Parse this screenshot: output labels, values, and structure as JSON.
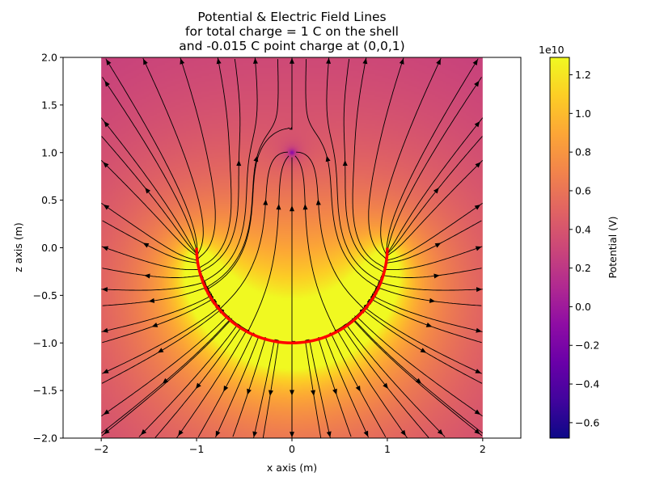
{
  "chart_data": {
    "type": "heatmap",
    "title": [
      "Potential & Electric Field Lines",
      "for total charge = 1 C on the shell",
      "and -0.015 C point charge at (0,0,1)"
    ],
    "xlabel": "x axis (m)",
    "ylabel": "z axis (m)",
    "xlim": [
      -2.4,
      2.4
    ],
    "ylim": [
      -2.0,
      2.0
    ],
    "field_xrange": [
      -2,
      2
    ],
    "field_zrange": [
      -2,
      2
    ],
    "x_ticks": [
      -2,
      -1,
      0,
      1,
      2
    ],
    "x_tick_labels": [
      "−2",
      "−1",
      "0",
      "1",
      "2"
    ],
    "y_ticks": [
      -2.0,
      -1.5,
      -1.0,
      -0.5,
      0.0,
      0.5,
      1.0,
      1.5,
      2.0
    ],
    "y_tick_labels": [
      "−2.0",
      "−1.5",
      "−1.0",
      "−0.5",
      "0.0",
      "0.5",
      "1.0",
      "1.5",
      "2.0"
    ],
    "shell": {
      "shape": "lower-hemisphere",
      "radius": 1,
      "center": [
        0,
        0
      ],
      "total_charge_C": 1,
      "color": "#ff0000"
    },
    "point_charge": {
      "x": 0,
      "z": 1,
      "charge_C": -0.015
    },
    "colorbar": {
      "label": "Potential (V)",
      "multiplier": "1e10",
      "colormap": "plasma",
      "vmin": -0.68,
      "vmax": 1.29,
      "ticks": [
        -0.6,
        -0.4,
        -0.2,
        0.0,
        0.2,
        0.4,
        0.6,
        0.8,
        1.0,
        1.2
      ],
      "tick_labels": [
        "−0.6",
        "−0.4",
        "−0.2",
        "0.0",
        "0.2",
        "0.4",
        "0.6",
        "0.8",
        "1.0",
        "1.2"
      ]
    },
    "field_lines": {
      "color": "#000000",
      "style": "streamplot"
    }
  }
}
